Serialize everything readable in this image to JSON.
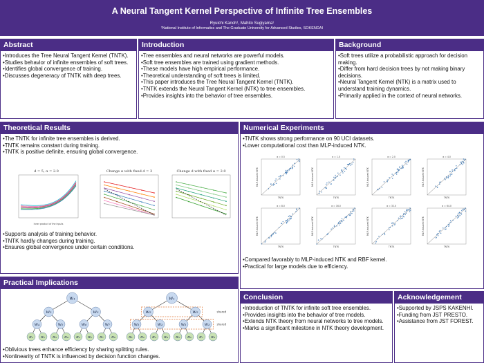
{
  "header": {
    "title": "A Neural Tangent Kernel Perspective of Infinite Tree Ensembles",
    "authors": "Ryuichi Kanoh¹, Mahito Sugiyama¹",
    "affiliation": "¹National Institute of Informatics and The Graduate University for Advanced Studies, SOKENDAI"
  },
  "abstract": {
    "heading": "Abstract",
    "items": [
      "Introduces the Tree Neural Tangent Kernel (TNTK).",
      "Studies behavior of infinite ensembles of soft trees.",
      "Identifies global convergence of training.",
      "Discusses degeneracy of TNTK with deep trees."
    ]
  },
  "introduction": {
    "heading": "Introduction",
    "items": [
      "Tree ensembles and neural networks are powerful models.",
      "Soft tree ensembles are trained using gradient methods.",
      "These models have high empirical performance.",
      "Theoretical understanding of soft trees is limited.",
      "This paper introduces the Tree Neural Tangent Kernel (TNTK).",
      "TNTK extends the Neural Tangent Kernel (NTK) to tree ensembles.",
      "Provides insights into the behavior of tree ensembles."
    ]
  },
  "background": {
    "heading": "Background",
    "items": [
      "Soft trees utilize a probabilistic approach for decision making.",
      "Differ from hard decision trees by not making binary decisions.",
      "Neural Tangent Kernel (NTK) is a matrix used to understand training dynamics.",
      "Primarily applied in the context of neural networks."
    ]
  },
  "theoretical": {
    "heading": "Theoretical Results",
    "items_top": [
      "The TNTK for infinite tree ensembles is derived.",
      "TNTK remains constant during training.",
      "TNTK is positive definite, ensuring global convergence."
    ],
    "items_bottom": [
      "Supports analysis of training behavior.",
      "TNTK hardly changes during training.",
      "Ensures global convergence under certain conditions."
    ],
    "fig1_title": "d = 5, α = 2.0",
    "fig2_title": "Change α with fixed d = 3",
    "fig3_title": "Change d with fixed α = 2.0",
    "fig1_xlabel": "Inner product of the inputs"
  },
  "numerical": {
    "heading": "Numerical Experiments",
    "items_top": [
      "TNTK shows strong performance on 90 UCI datasets.",
      "Lower computational cost than MLP-induced NTK."
    ],
    "items_bottom": [
      "Compared favorably to MLP-induced NTK and RBF kernel.",
      "Practical for large models due to efficiency."
    ],
    "scatter_titles": [
      "α = 0.5",
      "α = 1.0",
      "α = 2.0",
      "α = 4.0",
      "α = 8.0",
      "α = 16.0",
      "α = 32.0",
      "α = 64.0"
    ],
    "scatter_xlabel": "TNTK",
    "scatter_ylabel": "MLP-induced NTK"
  },
  "practical": {
    "heading": "Practical Implications",
    "items": [
      "Oblivious trees enhance efficiency by sharing splitting rules.",
      "Nonlinearity of TNTK is influenced by decision function changes."
    ],
    "tree_left": {
      "root": "w₁",
      "level2": [
        "w₂",
        "w₃"
      ],
      "level3": [
        "w₄",
        "w₅",
        "w₆",
        "w₇"
      ],
      "leaves": [
        "π₁",
        "π₂",
        "π₃",
        "π₄",
        "π₅",
        "π₆",
        "π₇",
        "π₈"
      ]
    },
    "tree_right": {
      "root": "w₁",
      "level2": [
        "w₂",
        "w₂"
      ],
      "level3": [
        "w₃",
        "w₃",
        "w₃",
        "w₃"
      ],
      "leaves": [
        "π₁",
        "π₂",
        "π₃",
        "π₄",
        "π₅",
        "π₆",
        "π₇",
        "π₈"
      ],
      "shared_label": "shared"
    }
  },
  "conclusion": {
    "heading": "Conclusion",
    "items": [
      "Introduction of TNTK for infinite soft tree ensembles.",
      "Provides insights into the behavior of tree models.",
      "Extends NTK theory from neural networks to tree models.",
      "Marks a significant milestone in NTK theory development."
    ]
  },
  "acknowledgement": {
    "heading": "Acknowledgement",
    "items": [
      "Supported by JSPS KAKENHI.",
      "Funding from JST PRESTO.",
      "Assistance from JST FOREST."
    ]
  },
  "colors": {
    "brand": "#4b2d86",
    "node_fill": "#c8d9ef",
    "leaf_fill": "#c9e2b3",
    "shared_box": "#e07a3a",
    "scatter_point": "#2f6fb0"
  }
}
